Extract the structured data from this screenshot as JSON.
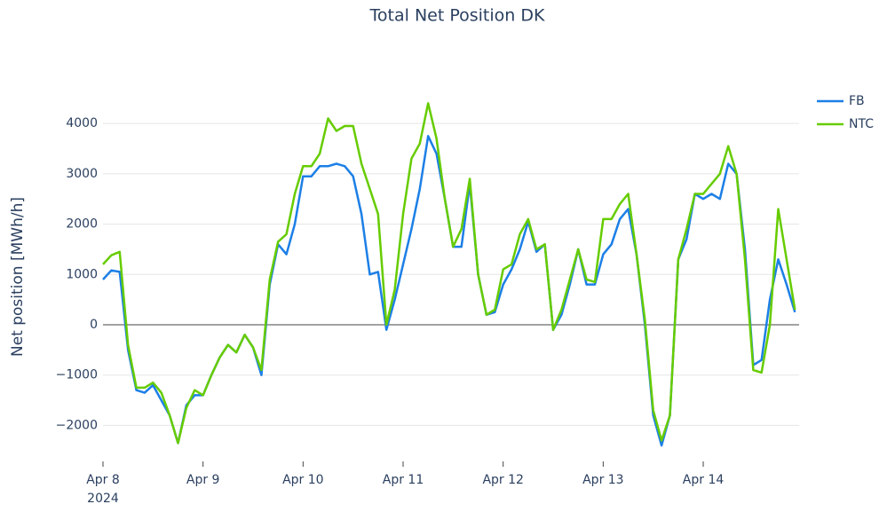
{
  "chart_data": {
    "type": "line",
    "title": "Total Net Position DK",
    "y_label": "Net position [MWh/h]",
    "x": [
      "2024-04-08T00:00",
      "2024-04-08T02:00",
      "2024-04-08T04:00",
      "2024-04-08T06:00",
      "2024-04-08T08:00",
      "2024-04-08T10:00",
      "2024-04-08T12:00",
      "2024-04-08T14:00",
      "2024-04-08T16:00",
      "2024-04-08T18:00",
      "2024-04-08T20:00",
      "2024-04-08T22:00",
      "2024-04-09T00:00",
      "2024-04-09T02:00",
      "2024-04-09T04:00",
      "2024-04-09T06:00",
      "2024-04-09T08:00",
      "2024-04-09T10:00",
      "2024-04-09T12:00",
      "2024-04-09T14:00",
      "2024-04-09T16:00",
      "2024-04-09T18:00",
      "2024-04-09T20:00",
      "2024-04-09T22:00",
      "2024-04-10T00:00",
      "2024-04-10T02:00",
      "2024-04-10T04:00",
      "2024-04-10T06:00",
      "2024-04-10T08:00",
      "2024-04-10T10:00",
      "2024-04-10T12:00",
      "2024-04-10T14:00",
      "2024-04-10T16:00",
      "2024-04-10T18:00",
      "2024-04-10T20:00",
      "2024-04-10T22:00",
      "2024-04-11T00:00",
      "2024-04-11T02:00",
      "2024-04-11T04:00",
      "2024-04-11T06:00",
      "2024-04-11T08:00",
      "2024-04-11T10:00",
      "2024-04-11T12:00",
      "2024-04-11T14:00",
      "2024-04-11T16:00",
      "2024-04-11T18:00",
      "2024-04-11T20:00",
      "2024-04-11T22:00",
      "2024-04-12T00:00",
      "2024-04-12T02:00",
      "2024-04-12T04:00",
      "2024-04-12T06:00",
      "2024-04-12T08:00",
      "2024-04-12T10:00",
      "2024-04-12T12:00",
      "2024-04-12T14:00",
      "2024-04-12T16:00",
      "2024-04-12T18:00",
      "2024-04-12T20:00",
      "2024-04-12T22:00",
      "2024-04-13T00:00",
      "2024-04-13T02:00",
      "2024-04-13T04:00",
      "2024-04-13T06:00",
      "2024-04-13T08:00",
      "2024-04-13T10:00",
      "2024-04-13T12:00",
      "2024-04-13T14:00",
      "2024-04-13T16:00",
      "2024-04-13T18:00",
      "2024-04-13T20:00",
      "2024-04-13T22:00",
      "2024-04-14T00:00",
      "2024-04-14T02:00",
      "2024-04-14T04:00",
      "2024-04-14T06:00",
      "2024-04-14T08:00",
      "2024-04-14T10:00",
      "2024-04-14T12:00",
      "2024-04-14T14:00",
      "2024-04-14T16:00",
      "2024-04-14T18:00",
      "2024-04-14T20:00",
      "2024-04-14T22:00"
    ],
    "series": [
      {
        "name": "FB",
        "color": "#1c7fe6",
        "values": [
          900,
          1080,
          1050,
          -500,
          -1300,
          -1350,
          -1200,
          -1500,
          -1800,
          -2350,
          -1600,
          -1400,
          -1400,
          -1000,
          -650,
          -400,
          -550,
          -200,
          -450,
          -1000,
          800,
          1600,
          1400,
          2000,
          2950,
          2950,
          3150,
          3150,
          3200,
          3150,
          2950,
          2200,
          1000,
          1050,
          -100,
          500,
          1200,
          1900,
          2700,
          3750,
          3400,
          2500,
          1550,
          1550,
          2800,
          1000,
          200,
          250,
          800,
          1100,
          1500,
          2050,
          1450,
          1600,
          -100,
          200,
          800,
          1500,
          800,
          800,
          1400,
          1600,
          2100,
          2300,
          1400,
          0,
          -1800,
          -2400,
          -1800,
          1300,
          1700,
          2600,
          2500,
          2600,
          2500,
          3200,
          3000,
          1500,
          -800,
          -700,
          500,
          1300,
          800,
          250
        ]
      },
      {
        "name": "NTC",
        "color": "#66cc00",
        "values": [
          1200,
          1380,
          1450,
          -400,
          -1250,
          -1250,
          -1150,
          -1350,
          -1800,
          -2350,
          -1650,
          -1300,
          -1400,
          -1000,
          -650,
          -400,
          -550,
          -200,
          -450,
          -900,
          900,
          1650,
          1800,
          2600,
          3150,
          3150,
          3400,
          4100,
          3850,
          3950,
          3950,
          3200,
          2700,
          2200,
          0,
          700,
          2200,
          3300,
          3600,
          4400,
          3700,
          2500,
          1550,
          1900,
          2900,
          1000,
          200,
          300,
          1100,
          1200,
          1800,
          2100,
          1500,
          1600,
          -100,
          300,
          900,
          1500,
          900,
          850,
          2100,
          2100,
          2400,
          2600,
          1400,
          100,
          -1700,
          -2300,
          -1800,
          1300,
          1900,
          2600,
          2600,
          2800,
          3000,
          3550,
          3000,
          1300,
          -900,
          -950,
          0,
          2300,
          1300,
          300
        ]
      }
    ],
    "xlim": [
      "2024-04-08T00:00",
      "2024-04-14T23:00"
    ],
    "xticks": [
      {
        "value": "2024-04-08T00:00",
        "label": "Apr 8"
      },
      {
        "value": "2024-04-09T00:00",
        "label": "Apr 9"
      },
      {
        "value": "2024-04-10T00:00",
        "label": "Apr 10"
      },
      {
        "value": "2024-04-11T00:00",
        "label": "Apr 11"
      },
      {
        "value": "2024-04-12T00:00",
        "label": "Apr 12"
      },
      {
        "value": "2024-04-13T00:00",
        "label": "Apr 13"
      },
      {
        "value": "2024-04-14T00:00",
        "label": "Apr 14"
      }
    ],
    "xtick_year": "2024",
    "ylim": [
      -2680,
      4690
    ],
    "yticks": [
      {
        "value": -2000,
        "label": "−2000"
      },
      {
        "value": -1000,
        "label": "−1000"
      },
      0,
      1000,
      2000,
      3000,
      4000
    ],
    "grid": true,
    "legend": "top-right"
  }
}
